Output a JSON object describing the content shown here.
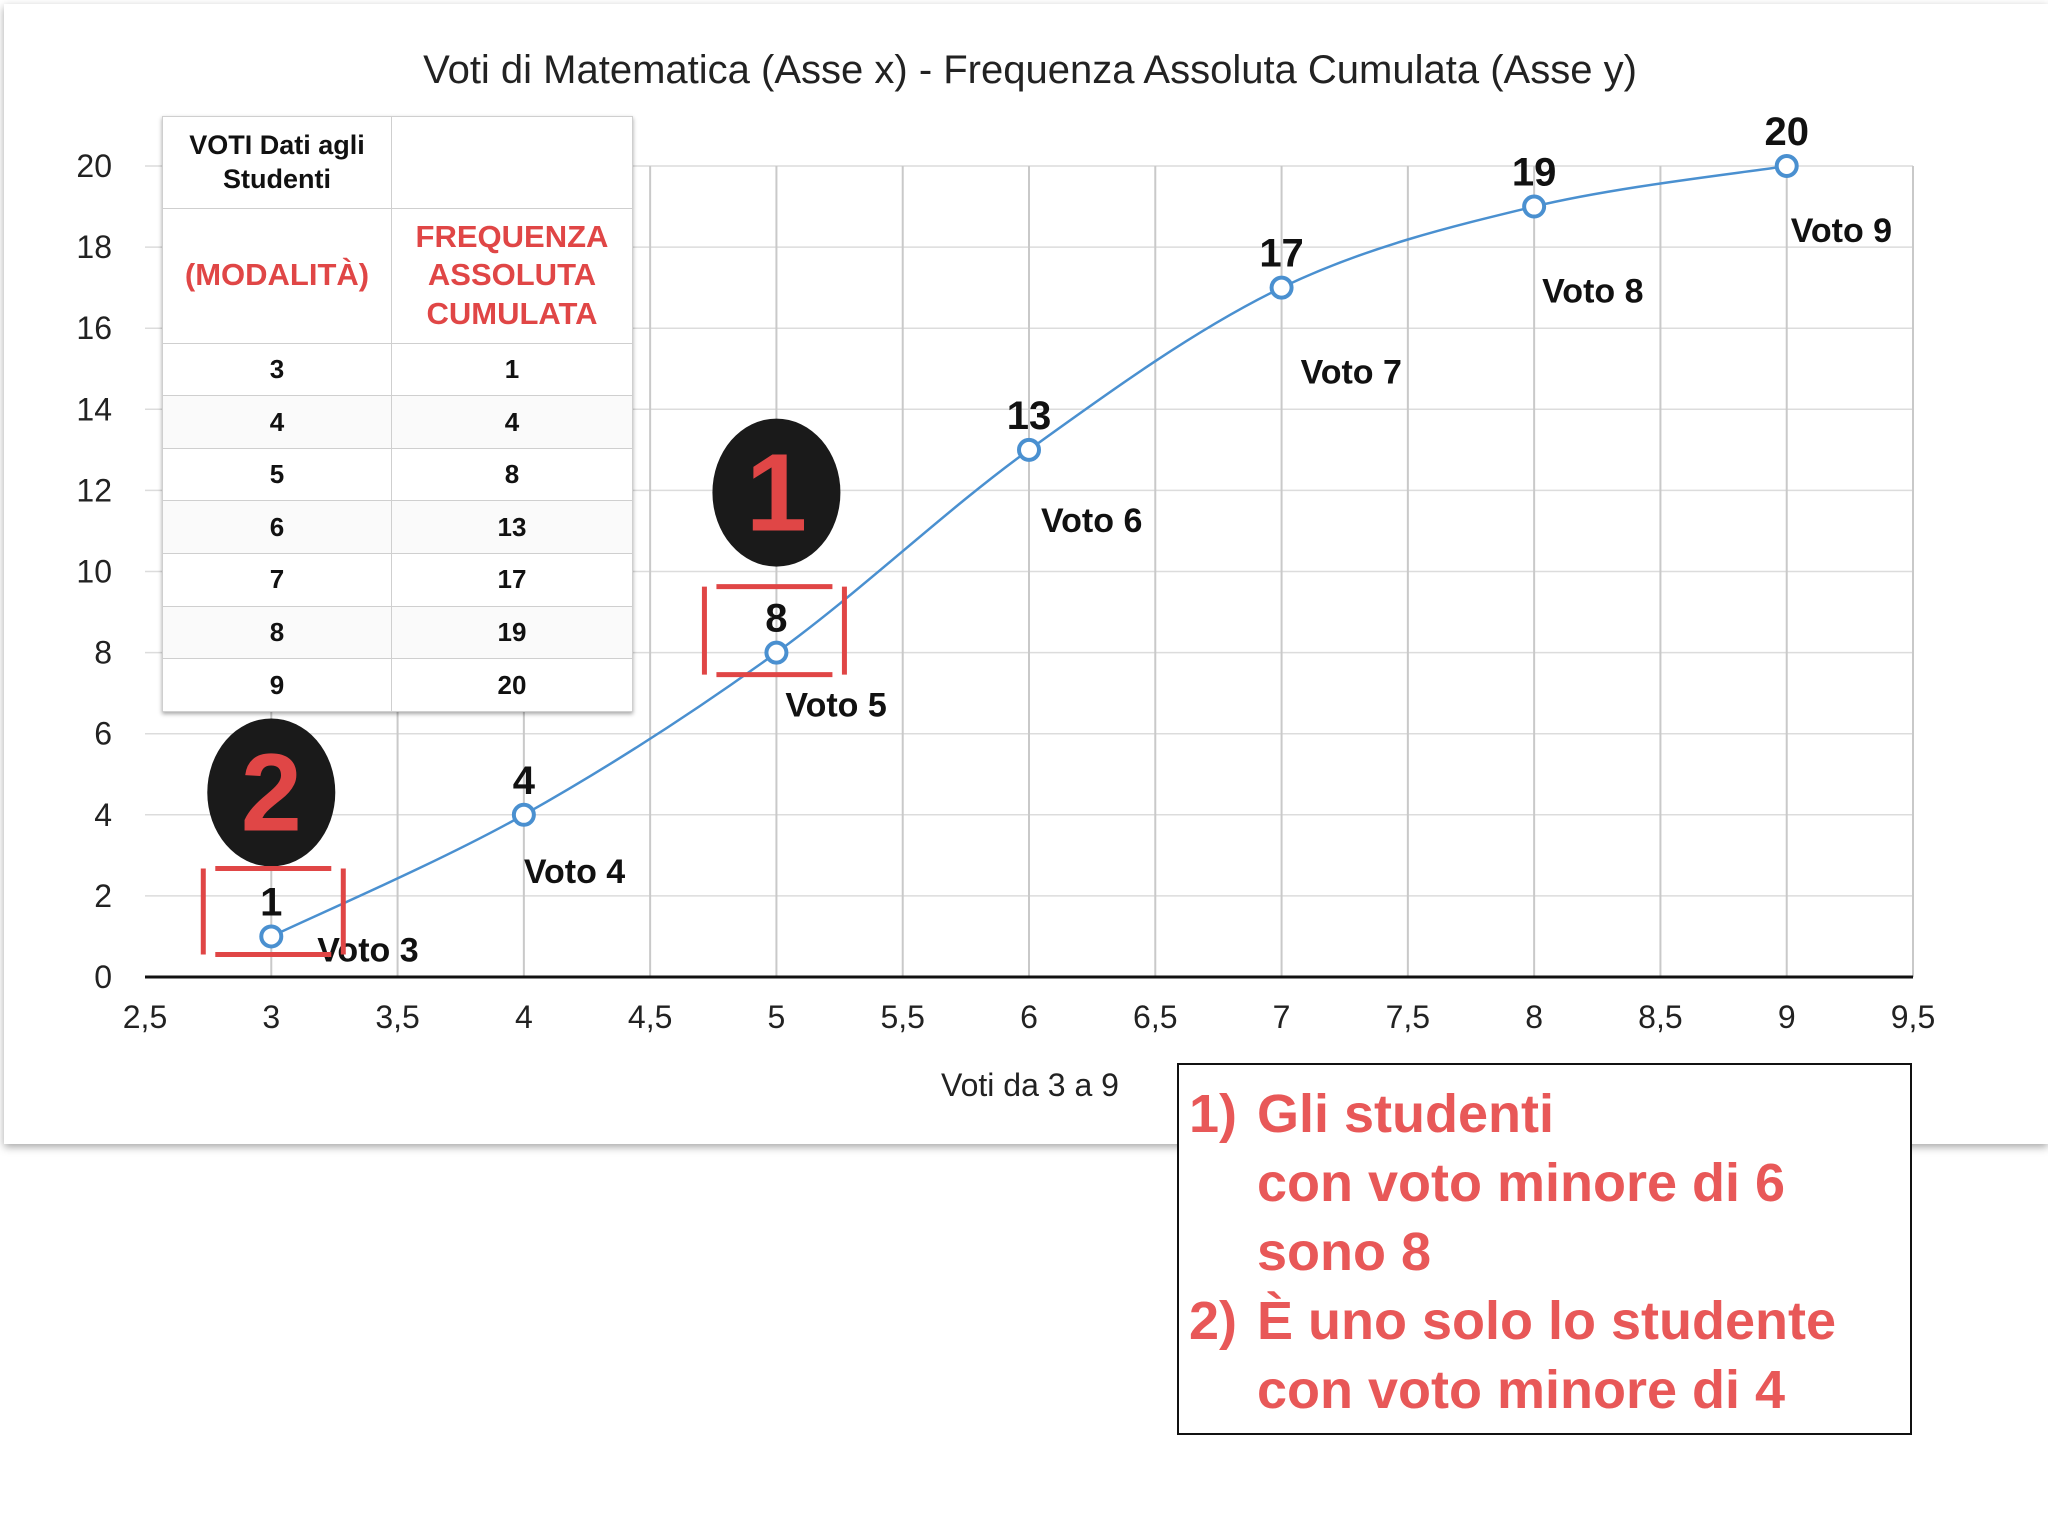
{
  "chart_data": {
    "type": "line",
    "title": "Voti di Matematica (Asse x) - Frequenza Assoluta Cumulata (Asse y)",
    "xlabel": "Voti da 3 a 9",
    "ylabel": "",
    "xlim": [
      2.5,
      9.5
    ],
    "ylim": [
      0,
      20
    ],
    "x_ticks": [
      "2,5",
      "3",
      "3,5",
      "4",
      "4,5",
      "5",
      "5,5",
      "6",
      "6,5",
      "7",
      "7,5",
      "8",
      "8,5",
      "9",
      "9,5"
    ],
    "y_ticks": [
      "0",
      "2",
      "4",
      "6",
      "8",
      "10",
      "12",
      "14",
      "16",
      "18",
      "20"
    ],
    "grid": true,
    "series": [
      {
        "x": [
          3,
          4,
          5,
          6,
          7,
          8,
          9
        ],
        "y": [
          1,
          4,
          8,
          13,
          17,
          19,
          20
        ],
        "data_labels": [
          "1",
          "4",
          "8",
          "13",
          "17",
          "19",
          "20"
        ],
        "point_labels": [
          "Voto 3",
          "Voto 4",
          "Voto 5",
          "Voto 6",
          "Voto 7",
          "Voto 8",
          "Voto 9"
        ],
        "color": "#4a90d0"
      }
    ],
    "annotations": {
      "badges": [
        {
          "text": "1",
          "x": 5,
          "y": 8
        },
        {
          "text": "2",
          "x": 3,
          "y": 1
        }
      ],
      "highlight_color": "#e04646"
    }
  },
  "table": {
    "header_top_left": "VOTI Dati agli Studenti",
    "header_left": "(MODALITÀ)",
    "header_right": "FREQUENZA ASSOLUTA CUMULATA",
    "rows": [
      {
        "voto": "3",
        "freq": "1"
      },
      {
        "voto": "4",
        "freq": "4"
      },
      {
        "voto": "5",
        "freq": "8"
      },
      {
        "voto": "6",
        "freq": "13"
      },
      {
        "voto": "7",
        "freq": "17"
      },
      {
        "voto": "8",
        "freq": "19"
      },
      {
        "voto": "9",
        "freq": "20"
      }
    ]
  },
  "note": {
    "lines": [
      {
        "prefix": "1)",
        "text": "Gli studenti"
      },
      {
        "prefix": "",
        "text": "con voto minore di 6"
      },
      {
        "prefix": "",
        "text": "sono 8"
      },
      {
        "prefix": "2)",
        "text": "È uno solo lo studente"
      },
      {
        "prefix": "",
        "text": "con voto minore di 4"
      }
    ],
    "color": "#e85858"
  }
}
